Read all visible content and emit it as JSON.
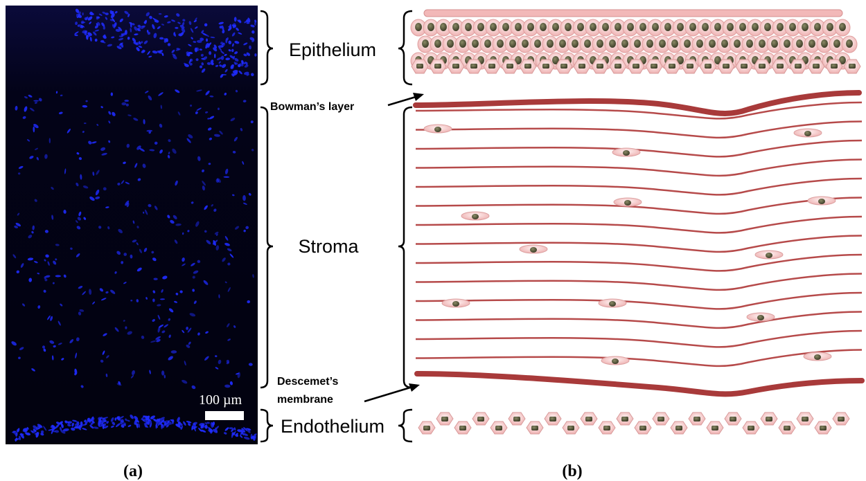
{
  "panel_a": {
    "label": "(a)",
    "scale_bar_text": "100 µm"
  },
  "panel_b": {
    "label": "(b)"
  },
  "layers": {
    "epithelium": "Epithelium",
    "stroma": "Stroma",
    "endothelium": "Endothelium"
  },
  "annotations": {
    "bowman": "Bowman’s layer",
    "descemet_line1": "Descemet’s",
    "descemet_line2": "membrane"
  },
  "colors": {
    "micrograph_background": "#020215",
    "nuclei_stain": "#1f2cff",
    "fiber": "#b64a4a",
    "cell_membrane": "#f4c2c2",
    "cell_nucleus": "#5a5a3c"
  }
}
